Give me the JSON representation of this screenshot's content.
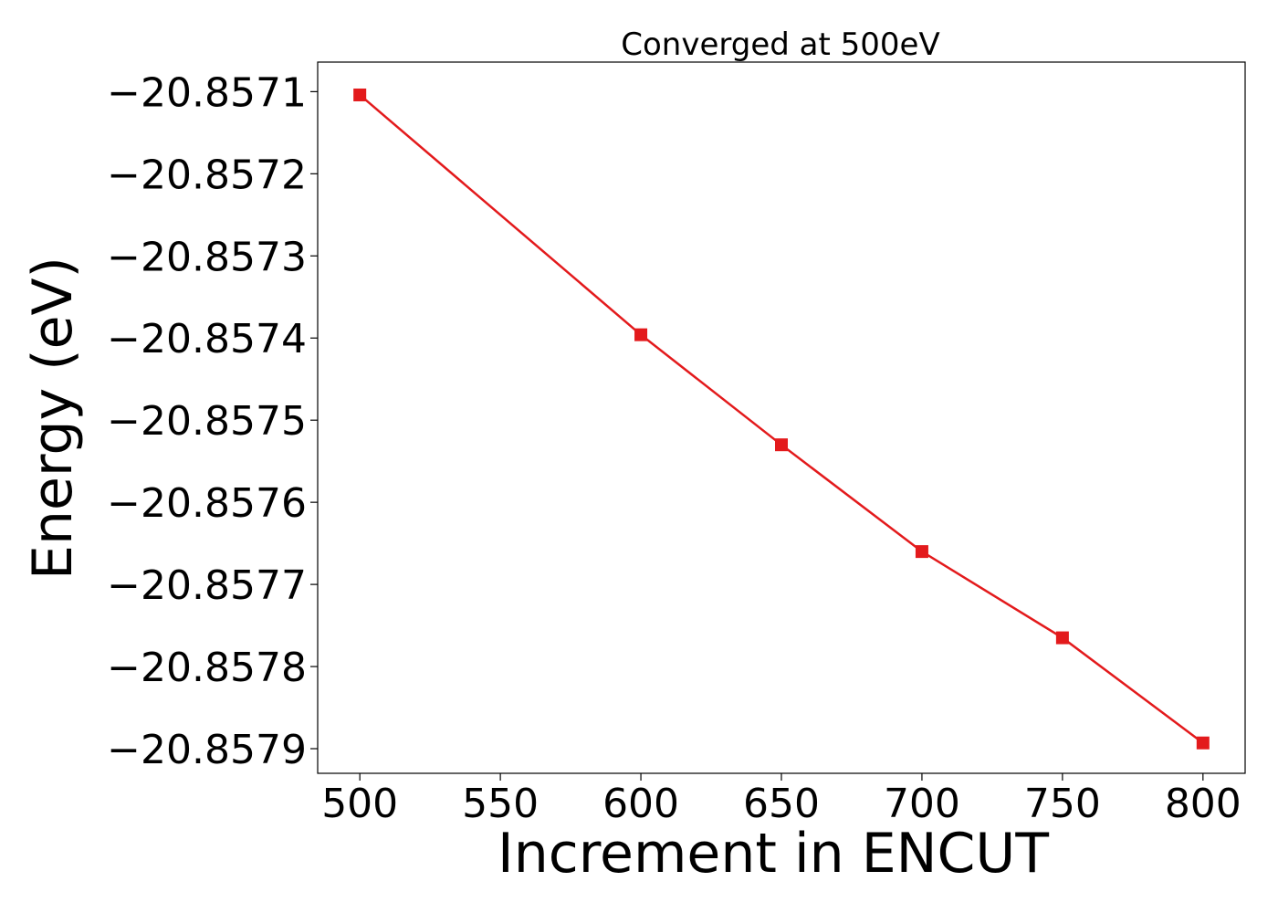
{
  "chart_data": {
    "type": "line",
    "title": "Converged at 500eV",
    "xlabel": "Increment in ENCUT",
    "ylabel": "Energy (eV)",
    "x": [
      500,
      600,
      650,
      700,
      750,
      800
    ],
    "series": [
      {
        "values": [
          -20.857104,
          -20.857396,
          -20.85753,
          -20.85766,
          -20.857765,
          -20.857893
        ],
        "color": "#e31a1c",
        "marker": "square"
      }
    ],
    "xlim": [
      485,
      815
    ],
    "ylim": [
      -20.85793,
      -20.857064
    ],
    "xticks": [
      500,
      550,
      600,
      650,
      700,
      750,
      800
    ],
    "xtick_labels": [
      "500",
      "550",
      "600",
      "650",
      "700",
      "750",
      "800"
    ],
    "yticks": [
      -20.8571,
      -20.8572,
      -20.8573,
      -20.8574,
      -20.8575,
      -20.8576,
      -20.8577,
      -20.8578,
      -20.8579
    ],
    "ytick_labels": [
      "−20.8571",
      "−20.8572",
      "−20.8573",
      "−20.8574",
      "−20.8575",
      "−20.8576",
      "−20.8577",
      "−20.8578",
      "−20.8579"
    ],
    "grid": false,
    "legend": "none"
  }
}
